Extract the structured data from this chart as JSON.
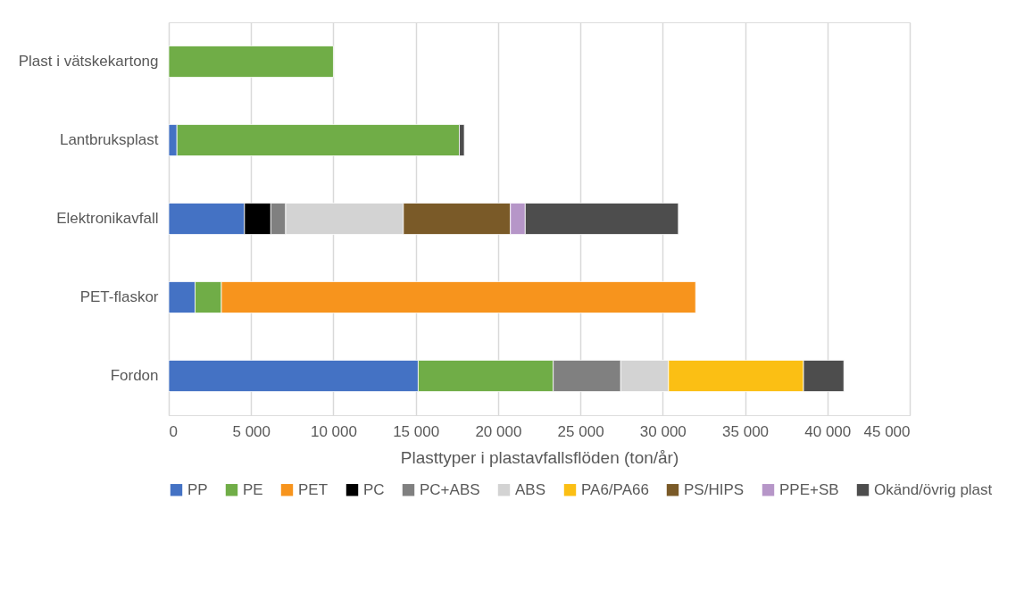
{
  "chart_data": {
    "type": "bar",
    "orientation": "horizontal",
    "stacked": true,
    "categories": [
      "Plast i vätskekartong",
      "Lantbruksplast",
      "Elektronikavfall",
      "PET-flaskor",
      "Fordon"
    ],
    "series": [
      {
        "name": "PP",
        "color": "#4472c4",
        "values": [
          null,
          500,
          4600,
          1600,
          15150
        ]
      },
      {
        "name": "PE",
        "color": "#70ad47",
        "values": [
          10000,
          17150,
          null,
          1600,
          8200
        ]
      },
      {
        "name": "PET",
        "color": "#f7941d",
        "values": [
          null,
          null,
          null,
          28800,
          null
        ]
      },
      {
        "name": "PC",
        "color": "#000000",
        "values": [
          null,
          null,
          1600,
          null,
          null
        ]
      },
      {
        "name": "PC+ABS",
        "color": "#808080",
        "values": [
          null,
          null,
          900,
          null,
          4100
        ]
      },
      {
        "name": "ABS",
        "color": "#d3d3d3",
        "values": [
          null,
          null,
          7150,
          null,
          2900
        ]
      },
      {
        "name": "PA6/PA66",
        "color": "#fbbf14",
        "values": [
          null,
          null,
          null,
          null,
          8200
        ]
      },
      {
        "name": "PS/HIPS",
        "color": "#7a5a28",
        "values": [
          null,
          null,
          6500,
          null,
          null
        ]
      },
      {
        "name": "PPE+SB",
        "color": "#b696c8",
        "values": [
          null,
          null,
          900,
          null,
          null
        ]
      },
      {
        "name": "Okänd/övrig plast",
        "color": "#4d4d4d",
        "values": [
          null,
          300,
          9300,
          null,
          2450
        ]
      }
    ],
    "xlim": [
      0,
      45000
    ],
    "xticks": [
      0,
      {
        "value": 5000,
        "label": "5 000"
      },
      {
        "value": 10000,
        "label": "10 000"
      },
      {
        "value": 15000,
        "label": "15 000"
      },
      {
        "value": 20000,
        "label": "20 000"
      },
      {
        "value": 25000,
        "label": "25 000"
      },
      {
        "value": 30000,
        "label": "30 000"
      },
      {
        "value": 35000,
        "label": "35 000"
      },
      {
        "value": 40000,
        "label": "40 000"
      },
      {
        "value": 45000,
        "label": "45 000"
      }
    ],
    "xlabel": "Plasttyper i plastavfallsflöden (ton/år)",
    "grid": "x",
    "legend": "bottom"
  }
}
